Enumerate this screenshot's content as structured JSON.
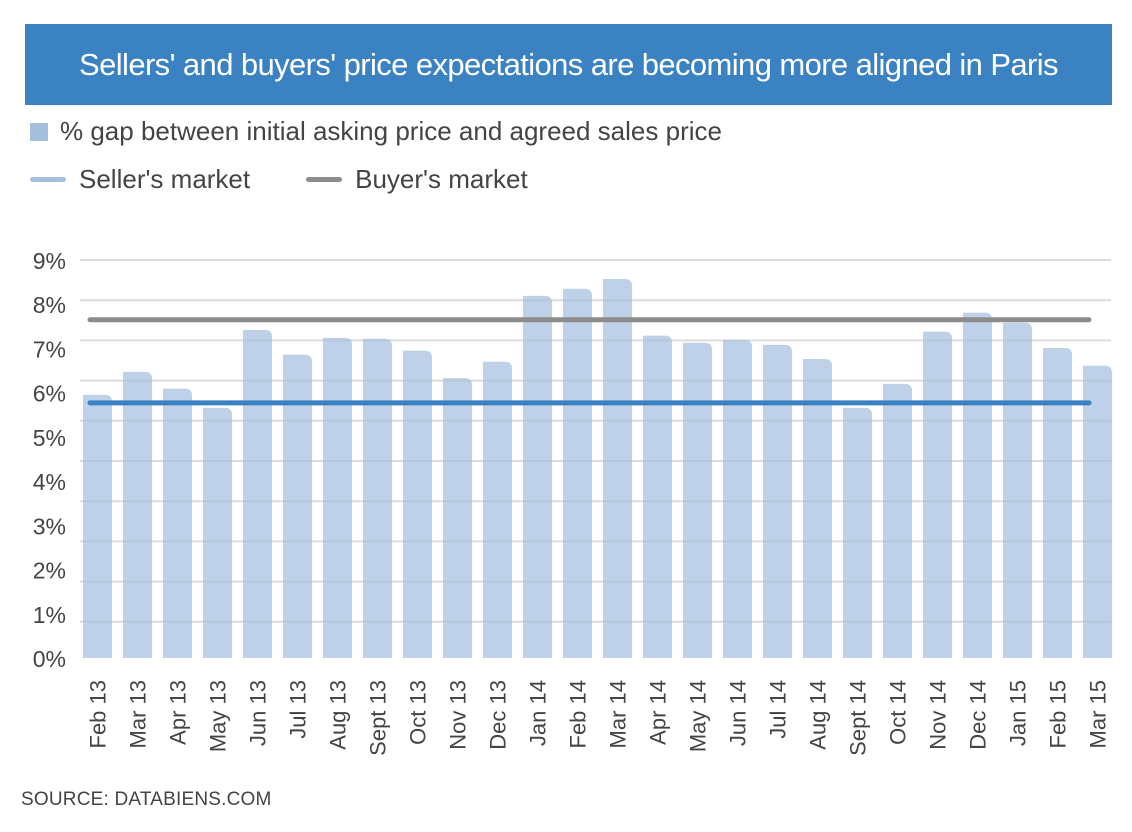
{
  "chart_data": {
    "type": "bar",
    "title": "Sellers' and buyers' price expectations are becoming more aligned in Paris",
    "xlabel": "",
    "ylabel": "",
    "ylim": [
      0,
      9
    ],
    "yticks": [
      0,
      1,
      2,
      3,
      4,
      5,
      6,
      7,
      8,
      9
    ],
    "ytick_labels": [
      "0%",
      "1%",
      "2%",
      "3%",
      "4%",
      "5%",
      "6%",
      "7%",
      "8%",
      "9%"
    ],
    "grid": true,
    "legend_position": "top-left",
    "categories": [
      "Feb 13",
      "Mar 13",
      "Apr 13",
      "May 13",
      "Jun 13",
      "Jul 13",
      "Aug 13",
      "Sept 13",
      "Oct 13",
      "Nov 13",
      "Dec 13",
      "Jan 14",
      "Feb 14",
      "Mar 14",
      "Apr 14",
      "May 14",
      "Jun 14",
      "Jul 14",
      "Aug 14",
      "Sept 14",
      "Oct 14",
      "Nov 14",
      "Dec 14",
      "Jan 15",
      "Feb 15",
      "Mar 15"
    ],
    "series": [
      {
        "name": "% gap between initial asking price and agreed sales price",
        "type": "bar",
        "color": "#a6bfdf",
        "values": [
          5.95,
          6.47,
          6.09,
          5.66,
          7.42,
          6.86,
          7.24,
          7.22,
          6.95,
          6.33,
          6.7,
          8.19,
          8.35,
          8.57,
          7.29,
          7.13,
          7.19,
          7.08,
          6.76,
          5.66,
          6.2,
          7.38,
          7.81,
          7.58,
          7.01,
          6.61
        ]
      },
      {
        "name": "Seller's market",
        "type": "line",
        "color": "#3a82c2",
        "legend_color": "#a6bfdf",
        "value": 5.77
      },
      {
        "name": "Buyer's market",
        "type": "line",
        "color": "#8c8c8c",
        "value": 7.65
      }
    ],
    "source": "SOURCE: DATABIENS.COM"
  },
  "header": {
    "title": "Sellers' and buyers' price expectations are becoming more aligned in Paris",
    "background": "#3a82c2"
  },
  "legend": {
    "bars_label": "% gap between initial asking price and agreed sales price",
    "seller_label": "Seller's market",
    "buyer_label": "Buyer's market"
  },
  "footer": {
    "source": "SOURCE: DATABIENS.COM"
  }
}
